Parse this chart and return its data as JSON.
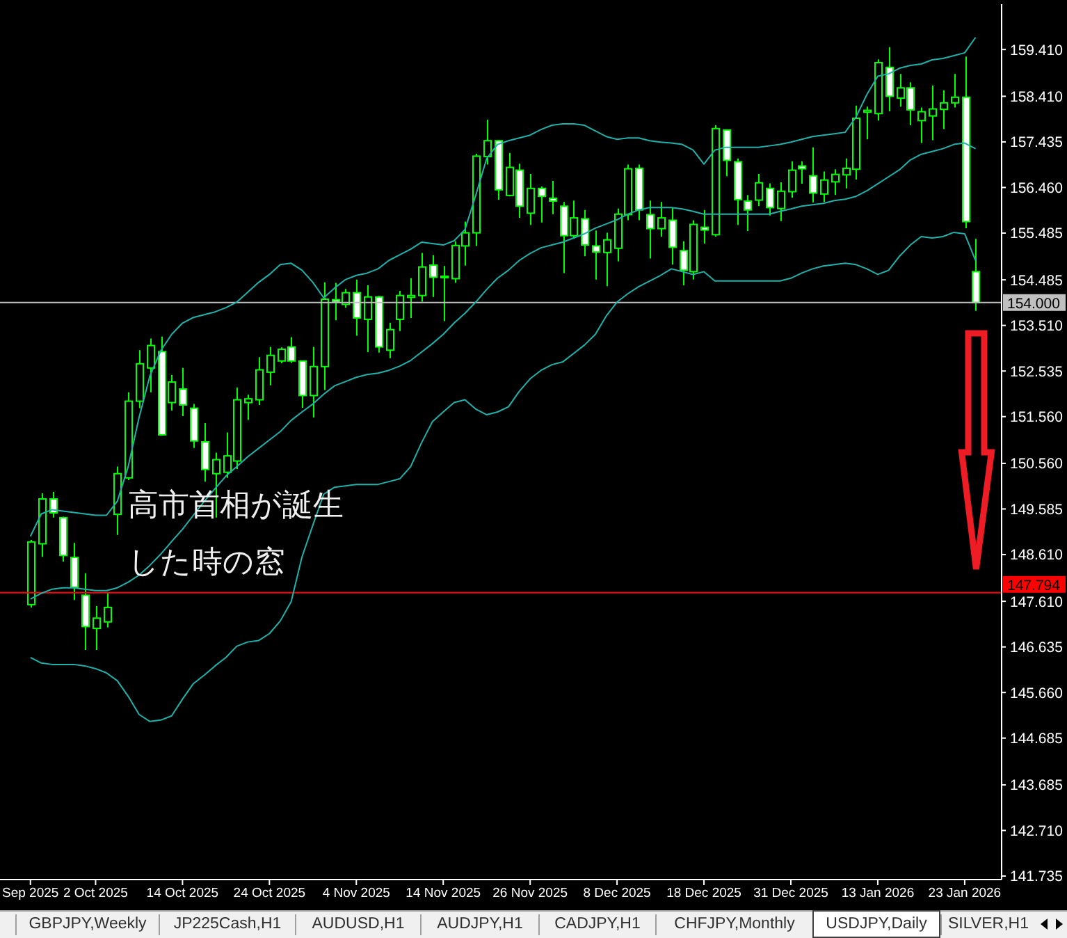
{
  "chart_data": {
    "type": "candlestick",
    "title": "USDJPY,Daily",
    "annotations": [
      "高市首相が誕生した時の窓",
      "GBPJPY,Weekly",
      "JP225Cash,H1",
      "AUDUSD,H1",
      "AUDJPY,H1",
      "CADJPY,H1",
      "CHFJPY,Monthly",
      "SILVER,H1"
    ],
    "categories": [
      "Sep 2025",
      null,
      null,
      null,
      null,
      null,
      "2 Oct 2025",
      null,
      null,
      null,
      null,
      null,
      null,
      null,
      "14 Oct 2025",
      null,
      null,
      null,
      null,
      null,
      null,
      null,
      "24 Oct 2025",
      null,
      null,
      null,
      null,
      null,
      null,
      null,
      "4 Nov 2025",
      null,
      null,
      null,
      null,
      null,
      null,
      null,
      "14 Nov 2025",
      null,
      null,
      null,
      null,
      null,
      null,
      null,
      "26 Nov 2025",
      null,
      null,
      null,
      null,
      null,
      null,
      null,
      "8 Dec 2025",
      null,
      null,
      null,
      null,
      null,
      null,
      null,
      "18 Dec 2025",
      null,
      null,
      null,
      null,
      null,
      null,
      null,
      "31 Dec 2025",
      null,
      null,
      null,
      null,
      null,
      null,
      null,
      "13 Jan 2026",
      null,
      null,
      null,
      null,
      null,
      null,
      null,
      "23 Jan 2026",
      null
    ],
    "color": "#00ff00",
    "ohlc": [
      [
        147.54,
        148.92,
        147.48,
        148.88
      ],
      [
        148.84,
        149.92,
        148.56,
        149.8
      ],
      [
        149.8,
        149.95,
        149.4,
        149.5
      ],
      [
        149.4,
        149.42,
        148.46,
        148.59
      ],
      [
        148.55,
        148.86,
        147.64,
        147.91
      ],
      [
        147.74,
        148.21,
        146.57,
        147.07
      ],
      [
        147.03,
        147.51,
        146.57,
        147.25
      ],
      [
        147.17,
        147.81,
        147.05,
        147.48
      ],
      [
        149.47,
        150.49,
        149.03,
        150.34
      ],
      [
        150.25,
        152.08,
        150.2,
        151.89
      ],
      [
        151.89,
        152.98,
        151.74,
        152.69
      ],
      [
        152.6,
        153.23,
        152.08,
        153.08
      ],
      [
        152.95,
        153.27,
        151.15,
        151.17
      ],
      [
        151.86,
        152.45,
        151.69,
        152.3
      ],
      [
        152.15,
        152.6,
        151.57,
        151.81
      ],
      [
        151.74,
        151.83,
        150.89,
        151.04
      ],
      [
        151.02,
        151.42,
        150.17,
        150.43
      ],
      [
        150.34,
        150.79,
        149.4,
        150.64
      ],
      [
        150.37,
        151.22,
        150.25,
        150.72
      ],
      [
        150.61,
        152.18,
        150.44,
        151.92
      ],
      [
        151.86,
        152.03,
        151.49,
        151.94
      ],
      [
        151.92,
        152.83,
        151.81,
        152.56
      ],
      [
        152.51,
        153.05,
        152.23,
        152.87
      ],
      [
        152.75,
        153.04,
        152.7,
        153.0
      ],
      [
        153.05,
        153.26,
        152.71,
        152.75
      ],
      [
        152.75,
        152.76,
        151.75,
        152.01
      ],
      [
        152.01,
        153.05,
        151.54,
        152.63
      ],
      [
        152.63,
        154.43,
        152.13,
        154.07
      ],
      [
        154.06,
        154.42,
        153.62,
        154.01
      ],
      [
        153.96,
        154.29,
        153.89,
        154.21
      ],
      [
        154.21,
        154.49,
        153.29,
        153.67
      ],
      [
        153.64,
        154.37,
        152.94,
        154.12
      ],
      [
        154.12,
        154.14,
        152.93,
        153.05
      ],
      [
        152.98,
        153.57,
        152.81,
        153.42
      ],
      [
        153.64,
        154.25,
        153.39,
        154.15
      ],
      [
        154.11,
        154.52,
        153.67,
        154.15
      ],
      [
        154.15,
        155.06,
        154.02,
        154.76
      ],
      [
        154.8,
        155.01,
        154.12,
        154.54
      ],
      [
        154.56,
        154.78,
        153.6,
        154.54
      ],
      [
        154.51,
        155.31,
        154.42,
        155.22
      ],
      [
        155.21,
        155.73,
        154.79,
        155.49
      ],
      [
        155.49,
        157.18,
        155.21,
        157.13
      ],
      [
        157.12,
        157.91,
        156.95,
        157.46
      ],
      [
        157.46,
        157.48,
        156.2,
        156.41
      ],
      [
        156.29,
        157.2,
        156.27,
        156.89
      ],
      [
        156.83,
        156.97,
        155.81,
        156.06
      ],
      [
        155.91,
        156.75,
        155.66,
        156.44
      ],
      [
        156.44,
        156.48,
        155.71,
        156.27
      ],
      [
        156.23,
        156.6,
        155.89,
        156.17
      ],
      [
        156.06,
        156.15,
        154.63,
        155.43
      ],
      [
        155.43,
        156.18,
        155.36,
        155.81
      ],
      [
        155.79,
        155.98,
        154.99,
        155.23
      ],
      [
        155.21,
        155.54,
        154.49,
        155.08
      ],
      [
        155.07,
        155.49,
        154.35,
        155.34
      ],
      [
        155.16,
        156.01,
        154.88,
        155.89
      ],
      [
        155.88,
        156.95,
        155.76,
        156.86
      ],
      [
        156.87,
        156.95,
        155.76,
        155.98
      ],
      [
        155.88,
        156.18,
        154.94,
        155.58
      ],
      [
        155.58,
        156.15,
        155.41,
        155.81
      ],
      [
        155.76,
        156.03,
        154.81,
        155.18
      ],
      [
        155.11,
        155.31,
        154.37,
        154.69
      ],
      [
        154.66,
        155.76,
        154.49,
        155.67
      ],
      [
        155.61,
        155.98,
        155.26,
        155.55
      ],
      [
        155.45,
        157.79,
        155.41,
        157.72
      ],
      [
        157.69,
        157.7,
        156.7,
        157.04
      ],
      [
        157.01,
        157.08,
        155.66,
        156.2
      ],
      [
        156.17,
        156.3,
        155.53,
        155.98
      ],
      [
        156.19,
        156.75,
        156.06,
        156.56
      ],
      [
        156.44,
        156.55,
        155.86,
        156.03
      ],
      [
        156.01,
        156.57,
        155.74,
        156.38
      ],
      [
        156.37,
        157.02,
        156.24,
        156.83
      ],
      [
        156.92,
        157.02,
        156.54,
        156.86
      ],
      [
        156.71,
        157.32,
        156.14,
        156.34
      ],
      [
        156.32,
        156.8,
        156.15,
        156.62
      ],
      [
        156.58,
        156.85,
        156.3,
        156.74
      ],
      [
        156.73,
        157.08,
        156.44,
        156.87
      ],
      [
        156.85,
        158.21,
        156.63,
        157.94
      ],
      [
        158.07,
        158.19,
        157.49,
        158.11
      ],
      [
        158.04,
        159.2,
        157.89,
        159.13
      ],
      [
        159.03,
        159.46,
        158.09,
        158.41
      ],
      [
        158.37,
        158.89,
        158.19,
        158.59
      ],
      [
        158.59,
        158.71,
        157.79,
        158.12
      ],
      [
        157.89,
        158.17,
        157.41,
        158.08
      ],
      [
        157.99,
        158.64,
        157.47,
        158.14
      ],
      [
        158.13,
        158.54,
        157.71,
        158.27
      ],
      [
        158.27,
        158.89,
        158.17,
        158.39
      ],
      [
        158.39,
        159.26,
        155.59,
        155.73
      ],
      [
        154.66,
        155.36,
        153.82,
        154.0
      ]
    ],
    "series": [
      {
        "type": "line",
        "color": "#20b2aa",
        "values": [
          149.0,
          149.48,
          149.57,
          149.54,
          149.51,
          149.48,
          149.45,
          149.45,
          149.75,
          150.49,
          151.54,
          152.43,
          152.97,
          153.32,
          153.56,
          153.68,
          153.74,
          153.8,
          153.89,
          154.01,
          154.22,
          154.43,
          154.6,
          154.81,
          154.84,
          154.69,
          154.43,
          154.1,
          154.31,
          154.49,
          154.58,
          154.63,
          154.72,
          154.9,
          155.02,
          155.14,
          155.29,
          155.26,
          155.23,
          155.32,
          155.56,
          156.3,
          157.08,
          157.38,
          157.46,
          157.52,
          157.58,
          157.7,
          157.79,
          157.82,
          157.82,
          157.79,
          157.67,
          157.55,
          157.49,
          157.52,
          157.52,
          157.46,
          157.43,
          157.41,
          157.38,
          157.26,
          156.96,
          157.26,
          157.32,
          157.32,
          157.32,
          157.32,
          157.35,
          157.38,
          157.43,
          157.49,
          157.55,
          157.58,
          157.61,
          157.64,
          157.97,
          158.45,
          158.84,
          158.89,
          159.01,
          159.07,
          159.1,
          159.19,
          159.22,
          159.28,
          159.34,
          159.67
        ]
      },
      {
        "type": "line",
        "color": "#20b2aa",
        "values": [
          147.66,
          147.78,
          147.87,
          147.9,
          147.9,
          147.87,
          147.84,
          147.84,
          147.9,
          148.02,
          148.17,
          148.38,
          148.62,
          148.89,
          149.15,
          149.45,
          149.75,
          150.02,
          150.29,
          150.49,
          150.7,
          150.88,
          151.06,
          151.24,
          151.48,
          151.66,
          151.83,
          152.04,
          152.22,
          152.31,
          152.4,
          152.46,
          152.49,
          152.55,
          152.64,
          152.76,
          152.94,
          153.12,
          153.32,
          153.56,
          153.77,
          154.01,
          154.28,
          154.52,
          154.69,
          154.9,
          155.05,
          155.17,
          155.23,
          155.29,
          155.38,
          155.47,
          155.59,
          155.68,
          155.77,
          155.89,
          155.98,
          156.03,
          156.03,
          156.03,
          156.0,
          155.95,
          155.89,
          155.89,
          155.89,
          155.89,
          155.89,
          155.89,
          155.89,
          155.95,
          156.0,
          156.06,
          156.09,
          156.12,
          156.18,
          156.21,
          156.27,
          156.39,
          156.54,
          156.69,
          156.84,
          157.05,
          157.17,
          157.23,
          157.29,
          157.38,
          157.41,
          157.29
        ]
      },
      {
        "type": "line",
        "color": "#20b2aa",
        "values": [
          146.41,
          146.29,
          146.26,
          146.26,
          146.26,
          146.23,
          146.17,
          146.08,
          145.91,
          145.58,
          145.19,
          145.04,
          145.07,
          145.16,
          145.52,
          145.85,
          146.03,
          146.23,
          146.41,
          146.65,
          146.74,
          146.77,
          146.92,
          147.19,
          147.6,
          148.56,
          149.24,
          149.9,
          150.05,
          150.08,
          150.11,
          150.11,
          150.11,
          150.17,
          150.23,
          150.49,
          151.0,
          151.45,
          151.66,
          151.86,
          151.92,
          151.72,
          151.6,
          151.66,
          151.77,
          152.1,
          152.37,
          152.55,
          152.67,
          152.73,
          152.91,
          153.09,
          153.32,
          153.71,
          154.01,
          154.19,
          154.34,
          154.46,
          154.58,
          154.72,
          154.66,
          154.6,
          154.66,
          154.46,
          154.46,
          154.46,
          154.46,
          154.46,
          154.46,
          154.46,
          154.52,
          154.63,
          154.72,
          154.78,
          154.81,
          154.84,
          154.81,
          154.72,
          154.6,
          154.69,
          154.99,
          155.23,
          155.41,
          155.38,
          155.41,
          155.5,
          155.47,
          154.9
        ]
      }
    ],
    "ylim": [
      141.66,
      160.38
    ],
    "yticks": [
      {
        "value": 159.41,
        "label": "159.410"
      },
      {
        "value": 158.41,
        "label": "158.410"
      },
      {
        "value": 157.435,
        "label": "157.435"
      },
      {
        "value": 156.46,
        "label": "156.460"
      },
      {
        "value": 155.485,
        "label": "155.485"
      },
      {
        "value": 154.485,
        "label": "154.485"
      },
      {
        "value": 153.51,
        "label": "153.510"
      },
      {
        "value": 152.535,
        "label": "152.535"
      },
      {
        "value": 151.56,
        "label": "151.560"
      },
      {
        "value": 150.56,
        "label": "150.560"
      },
      {
        "value": 149.585,
        "label": "149.585"
      },
      {
        "value": 148.61,
        "label": "148.610"
      },
      {
        "value": 147.61,
        "label": "147.610"
      },
      {
        "value": 146.635,
        "label": "146.635"
      },
      {
        "value": 145.66,
        "label": "145.660"
      },
      {
        "value": 144.685,
        "label": "144.685"
      },
      {
        "value": 143.685,
        "label": "143.685"
      },
      {
        "value": 142.71,
        "label": "142.710"
      },
      {
        "value": 141.735,
        "label": "141.735"
      }
    ],
    "ref_lines": [
      {
        "axis": "y",
        "value": 154.0,
        "label": "154.000",
        "color": "#c0c0c0"
      },
      {
        "axis": "y",
        "value": 147.794,
        "label": "147.794",
        "color": "#ff0000"
      }
    ]
  }
}
